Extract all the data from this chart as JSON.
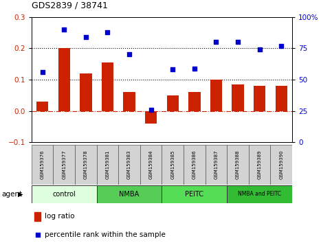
{
  "title": "GDS2839 / 38741",
  "samples": [
    "GSM159376",
    "GSM159377",
    "GSM159378",
    "GSM159381",
    "GSM159383",
    "GSM159384",
    "GSM159385",
    "GSM159386",
    "GSM159387",
    "GSM159388",
    "GSM159389",
    "GSM159390"
  ],
  "log_ratio": [
    0.03,
    0.2,
    0.12,
    0.155,
    0.06,
    -0.04,
    0.05,
    0.06,
    0.1,
    0.085,
    0.08,
    0.08
  ],
  "percentile_rank": [
    56,
    90,
    84,
    88,
    70,
    26,
    58,
    59,
    80,
    80,
    74,
    77
  ],
  "groups": [
    {
      "label": "control",
      "start": 0,
      "end": 3,
      "color": "#ddffdd"
    },
    {
      "label": "NMBA",
      "start": 3,
      "end": 6,
      "color": "#55cc55"
    },
    {
      "label": "PEITC",
      "start": 6,
      "end": 9,
      "color": "#55dd55"
    },
    {
      "label": "NMBA and PEITC",
      "start": 9,
      "end": 12,
      "color": "#33bb33"
    }
  ],
  "bar_color": "#cc2200",
  "dot_color": "#0000cc",
  "ylim_left": [
    -0.1,
    0.3
  ],
  "ylim_right": [
    0,
    100
  ],
  "yticks_left": [
    -0.1,
    0,
    0.1,
    0.2,
    0.3
  ],
  "yticks_right": [
    0,
    25,
    50,
    75,
    100
  ],
  "hline_values": [
    0.1,
    0.2
  ],
  "legend_bar_label": "log ratio",
  "legend_dot_label": "percentile rank within the sample",
  "agent_label": "agent",
  "tick_label_color_left": "#cc2200",
  "tick_label_color_right": "#0000cc"
}
